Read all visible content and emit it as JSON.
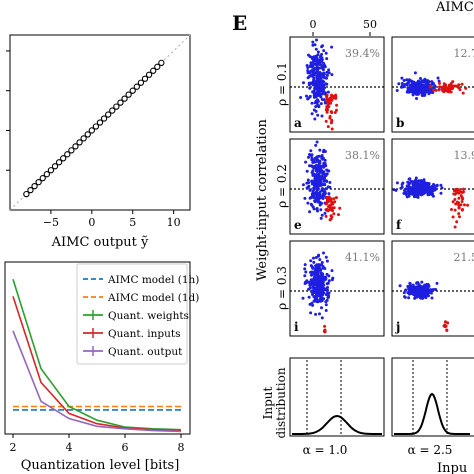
{
  "colors": {
    "blue": "#1f1fe0",
    "red": "#e01010",
    "model_1h": "#1f77b4",
    "model_1d": "#ff7f0e",
    "weights": "#2ca02c",
    "inputs": "#d62728",
    "output": "#9467bd",
    "gray_text": "#7a7a7a"
  },
  "panel_letter": "E",
  "chart_data": [
    {
      "type": "scatter",
      "id": "top-left-scatter",
      "xlabel": "AIMC output ỹ",
      "x_ticks": [
        "−5",
        "0",
        "5",
        "10"
      ],
      "xlim": [
        -10,
        12
      ],
      "ylim": [
        -10,
        12
      ],
      "diagonal": true,
      "points_x": [
        -8.0,
        -7.5,
        -7.0,
        -6.5,
        -6.0,
        -5.5,
        -5.0,
        -4.5,
        -4.0,
        -3.5,
        -3.0,
        -2.5,
        -2.0,
        -1.5,
        -1.0,
        -0.5,
        0.0,
        0.5,
        1.0,
        1.5,
        2.0,
        2.5,
        3.0,
        3.5,
        4.0,
        4.5,
        5.0,
        5.5,
        6.0,
        6.5,
        7.0,
        7.5,
        8.0,
        8.5
      ]
    },
    {
      "type": "line",
      "id": "quantization-chart",
      "xlabel": "Quantization level [bits]",
      "x": [
        2,
        3,
        4,
        5,
        6,
        7,
        8
      ],
      "x_ticks": [
        "2",
        "4",
        "6",
        "8"
      ],
      "ylim": [
        0,
        10
      ],
      "legend": "top-right",
      "series": [
        {
          "name": "AIMC model (1h)",
          "dashed": true,
          "values": [
            1.4,
            1.4,
            1.4,
            1.4,
            1.4,
            1.4,
            1.4
          ]
        },
        {
          "name": "AIMC model (1d)",
          "dashed": true,
          "values": [
            1.6,
            1.6,
            1.6,
            1.6,
            1.6,
            1.6,
            1.6
          ]
        },
        {
          "name": "Quant. weights",
          "dashed": false,
          "values": [
            9.0,
            3.8,
            1.6,
            0.8,
            0.4,
            0.3,
            0.25
          ]
        },
        {
          "name": "Quant. inputs",
          "dashed": false,
          "values": [
            8.0,
            3.0,
            1.2,
            0.6,
            0.35,
            0.25,
            0.2
          ]
        },
        {
          "name": "Quant. output",
          "dashed": false,
          "values": [
            6.0,
            1.9,
            0.9,
            0.45,
            0.3,
            0.2,
            0.15
          ]
        }
      ]
    },
    {
      "type": "scatter",
      "id": "panel-E-grid",
      "top_axis_label": "AIMC",
      "top_ticks": [
        "0",
        "50"
      ],
      "ylabel": "Weight-input correlation",
      "rows": [
        {
          "rho_label": "ρ = 0.1",
          "cells": [
            {
              "letter": "a",
              "pct": "39.4%"
            },
            {
              "letter": "b",
              "pct": "12.7"
            }
          ]
        },
        {
          "rho_label": "ρ = 0.2",
          "cells": [
            {
              "letter": "e",
              "pct": "38.1%"
            },
            {
              "letter": "f",
              "pct": "13.9"
            }
          ]
        },
        {
          "rho_label": "ρ = 0.3",
          "cells": [
            {
              "letter": "i",
              "pct": "41.1%"
            },
            {
              "letter": "j",
              "pct": "21.5"
            }
          ]
        }
      ],
      "distribution": {
        "ylabel_line1": "Input",
        "ylabel_line2": "distribution",
        "xlabel": "Inpu",
        "alphas": [
          "α = 1.0",
          "α = 2.5"
        ]
      }
    }
  ]
}
